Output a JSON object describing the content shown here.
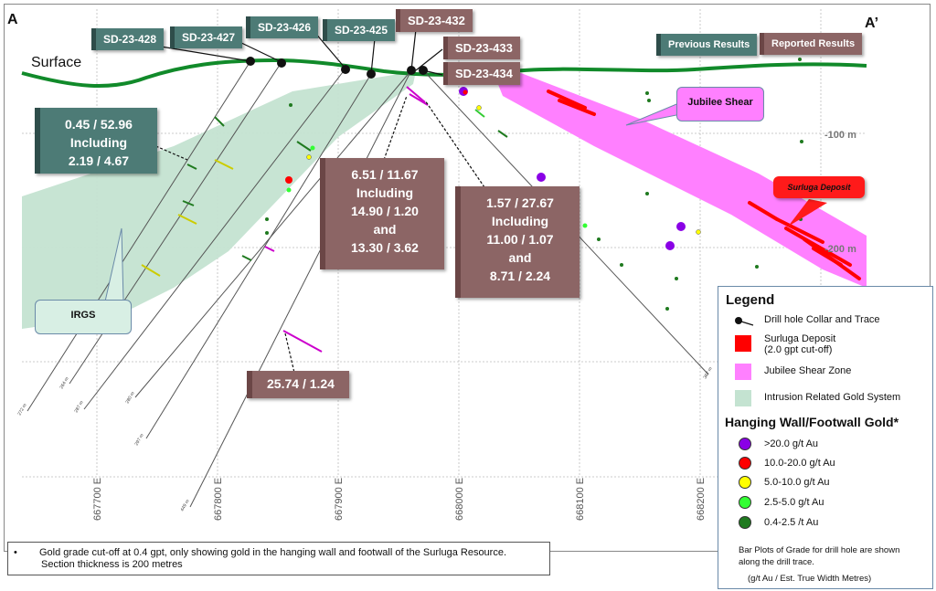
{
  "section": {
    "end_left": "A",
    "end_right": "A’",
    "surface_label": "Surface"
  },
  "buttons": {
    "previous": "Previous Results",
    "reported": "Reported Results"
  },
  "holes": [
    {
      "id": "SD-23-428",
      "color": "teal"
    },
    {
      "id": "SD-23-427",
      "color": "teal"
    },
    {
      "id": "SD-23-426",
      "color": "teal"
    },
    {
      "id": "SD-23-425",
      "color": "teal"
    },
    {
      "id": "SD-23-432",
      "color": "brown"
    },
    {
      "id": "SD-23-433",
      "color": "brown"
    },
    {
      "id": "SD-23-434",
      "color": "brown"
    }
  ],
  "results": {
    "r1": [
      "0.45 / 52.96",
      "Including",
      "2.19 / 4.67"
    ],
    "r2": [
      "6.51 / 11.67",
      "Including",
      "14.90 / 1.20",
      "and",
      "13.30 / 3.62"
    ],
    "r3": [
      "1.57 / 27.67",
      "Including",
      "11.00 / 1.07",
      "and",
      "8.71 / 2.24"
    ],
    "r4": [
      "25.74 / 1.24"
    ]
  },
  "callouts": {
    "jubilee": "Jubilee Shear",
    "surluga": "Surluga Deposit",
    "irgs": "IRGS"
  },
  "axes": {
    "eastings": [
      "667700 E",
      "667800 E",
      "667900 E",
      "668000 E",
      "668100 E",
      "668200 E"
    ],
    "depths": [
      "-100 m",
      "-200 m"
    ]
  },
  "legend": {
    "title": "Legend",
    "items": [
      {
        "symbol": "drill-hole",
        "label": "Drill hole Collar and Trace"
      },
      {
        "symbol": "surluga",
        "label": "Surluga Deposit",
        "label2": "(2.0 gpt cut-off)",
        "color": "#ff0000"
      },
      {
        "symbol": "jubilee",
        "label": "Jubilee Shear Zone",
        "color": "#ff80ff"
      },
      {
        "symbol": "irgs",
        "label": "Intrusion Related Gold System",
        "color": "#c4e3d1"
      }
    ],
    "gold_title": "Hanging Wall/Footwall Gold*",
    "gold": [
      {
        "label": ">20.0 g/t Au",
        "color": "#8a00e6"
      },
      {
        "label": "10.0-20.0 g/t Au",
        "color": "#ff0000"
      },
      {
        "label": "5.0-10.0 g/t Au",
        "color": "#ffff00"
      },
      {
        "label": "2.5-5.0  g/t Au",
        "color": "#33ff33"
      },
      {
        "label": "0.4-2.5  /t Au",
        "color": "#1f7a1f"
      }
    ],
    "note1": "Bar Plots of Grade for drill hole are shown along the drill trace.",
    "note2": "(g/t Au / Est. True Width Metres)"
  },
  "footnote": {
    "bullet": "•",
    "line1": "Gold grade cut-off at 0.4 gpt, only showing gold in the hanging wall and footwall of the Surluga Resource.",
    "line2": "Section thickness is 200 metres"
  },
  "end_depths": [
    "272 m",
    "264 m",
    "287 m",
    "297 m",
    "280 m",
    "449 m",
    "367 m"
  ]
}
